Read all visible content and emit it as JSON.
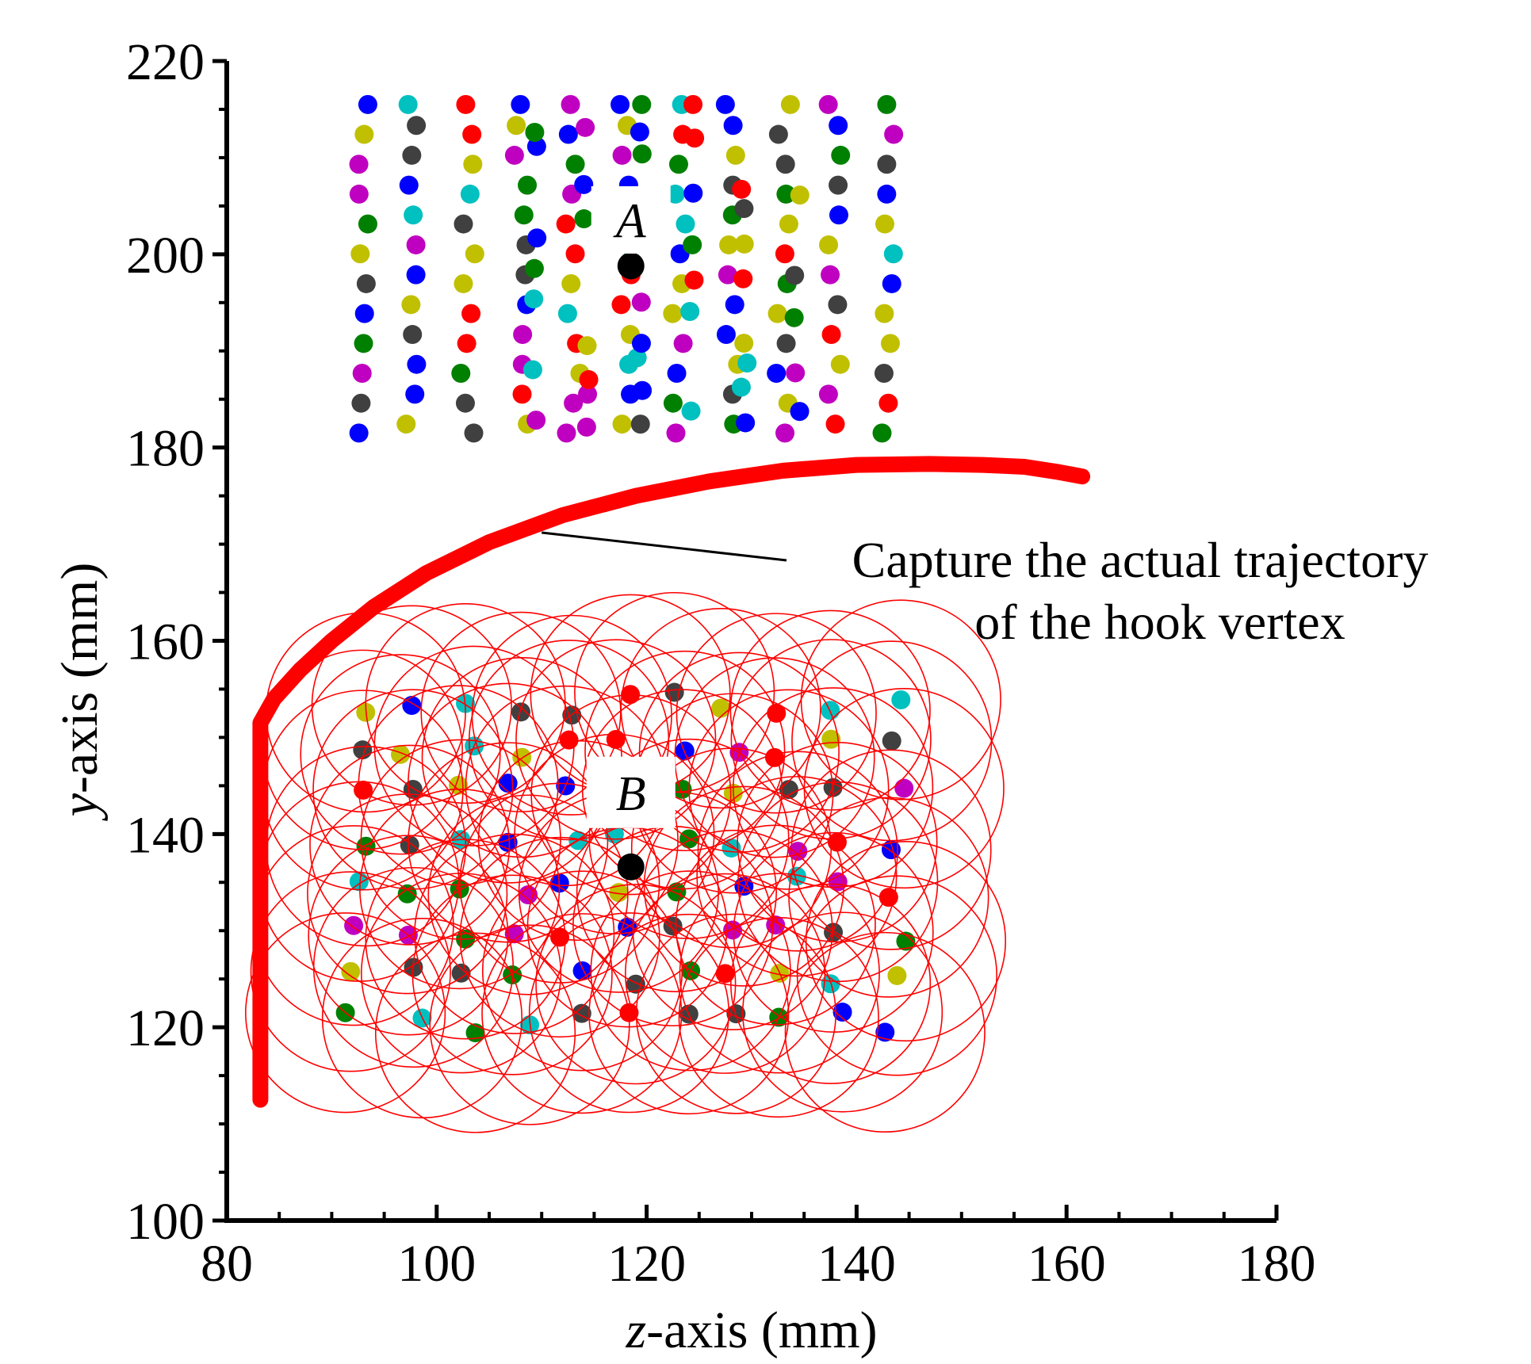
{
  "chart_data": {
    "type": "scatter",
    "xlabel": {
      "var": "z",
      "rest": "-axis (mm)"
    },
    "ylabel": {
      "var": "y",
      "rest": "-axis (mm)"
    },
    "xlim": [
      80,
      180
    ],
    "ylim": [
      100,
      220
    ],
    "xticks": [
      80,
      100,
      120,
      140,
      160,
      180
    ],
    "yticks": [
      100,
      120,
      140,
      160,
      180,
      200,
      220
    ],
    "grid": false,
    "legend": "none",
    "colors": {
      "trajectory": "#ff0000",
      "palette": [
        "#ff0000",
        "#0000ff",
        "#008000",
        "#c0c000",
        "#00c0c0",
        "#c000c0",
        "#404040"
      ],
      "center": "#000000",
      "circle": "#ff0000"
    },
    "region_A": {
      "label": "A",
      "center": [
        118.5,
        198.8
      ],
      "z_columns": [
        92.8,
        97.5,
        103,
        108,
        113,
        118,
        123,
        128,
        133,
        138,
        143
      ],
      "y_range": [
        181.5,
        215.5
      ],
      "points_per_column": 12
    },
    "region_B": {
      "label": "B",
      "center": [
        118.5,
        136.6
      ],
      "z_range": [
        92.5,
        143.5
      ],
      "y_range": [
        120.5,
        153.5
      ],
      "circle_radius_mm": 9.5
    },
    "trajectory": {
      "points": [
        [
          83.2,
          112.5
        ],
        [
          83.2,
          120
        ],
        [
          83.2,
          130
        ],
        [
          83.2,
          140
        ],
        [
          83.2,
          151.5
        ],
        [
          84.5,
          154
        ],
        [
          87,
          157
        ],
        [
          90,
          160
        ],
        [
          94,
          163.5
        ],
        [
          99,
          167
        ],
        [
          105,
          170.2
        ],
        [
          112,
          173
        ],
        [
          119,
          175
        ],
        [
          126,
          176.5
        ],
        [
          133,
          177.6
        ],
        [
          140,
          178.2
        ],
        [
          147,
          178.3
        ],
        [
          152,
          178.2
        ],
        [
          156,
          178
        ],
        [
          159,
          177.5
        ],
        [
          161.5,
          177
        ]
      ]
    },
    "annotation": {
      "lines": [
        "Capture the actual trajectory",
        "of the hook vertex"
      ],
      "points_to": [
        110,
        171.2
      ]
    }
  }
}
